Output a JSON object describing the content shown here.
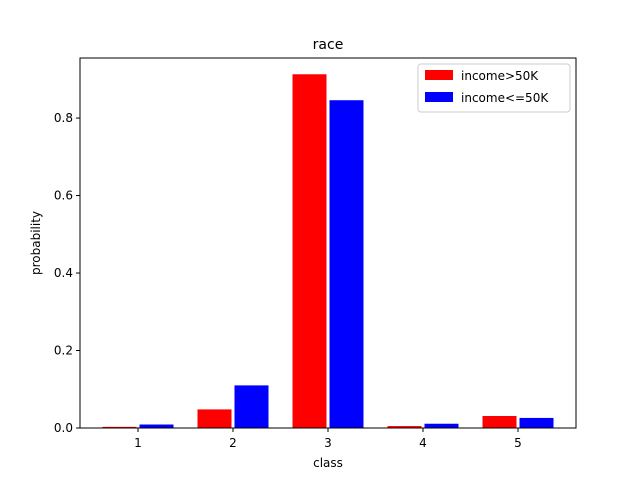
{
  "chart_data": {
    "type": "bar",
    "title": "race",
    "xlabel": "class",
    "ylabel": "probability",
    "categories": [
      "1",
      "2",
      "3",
      "4",
      "5"
    ],
    "series": [
      {
        "name": "income>50K",
        "color": "#ff0000",
        "values": [
          0.003,
          0.048,
          0.913,
          0.005,
          0.031
        ]
      },
      {
        "name": "income<=50K",
        "color": "#0000ff",
        "values": [
          0.009,
          0.11,
          0.846,
          0.011,
          0.026
        ]
      }
    ],
    "ylim": [
      0,
      0.955
    ],
    "yticks": [
      0.0,
      0.2,
      0.4,
      0.6,
      0.8
    ],
    "ytick_labels": [
      "0.0",
      "0.2",
      "0.4",
      "0.6",
      "0.8"
    ],
    "legend_position": "upper right",
    "grid": false
  }
}
